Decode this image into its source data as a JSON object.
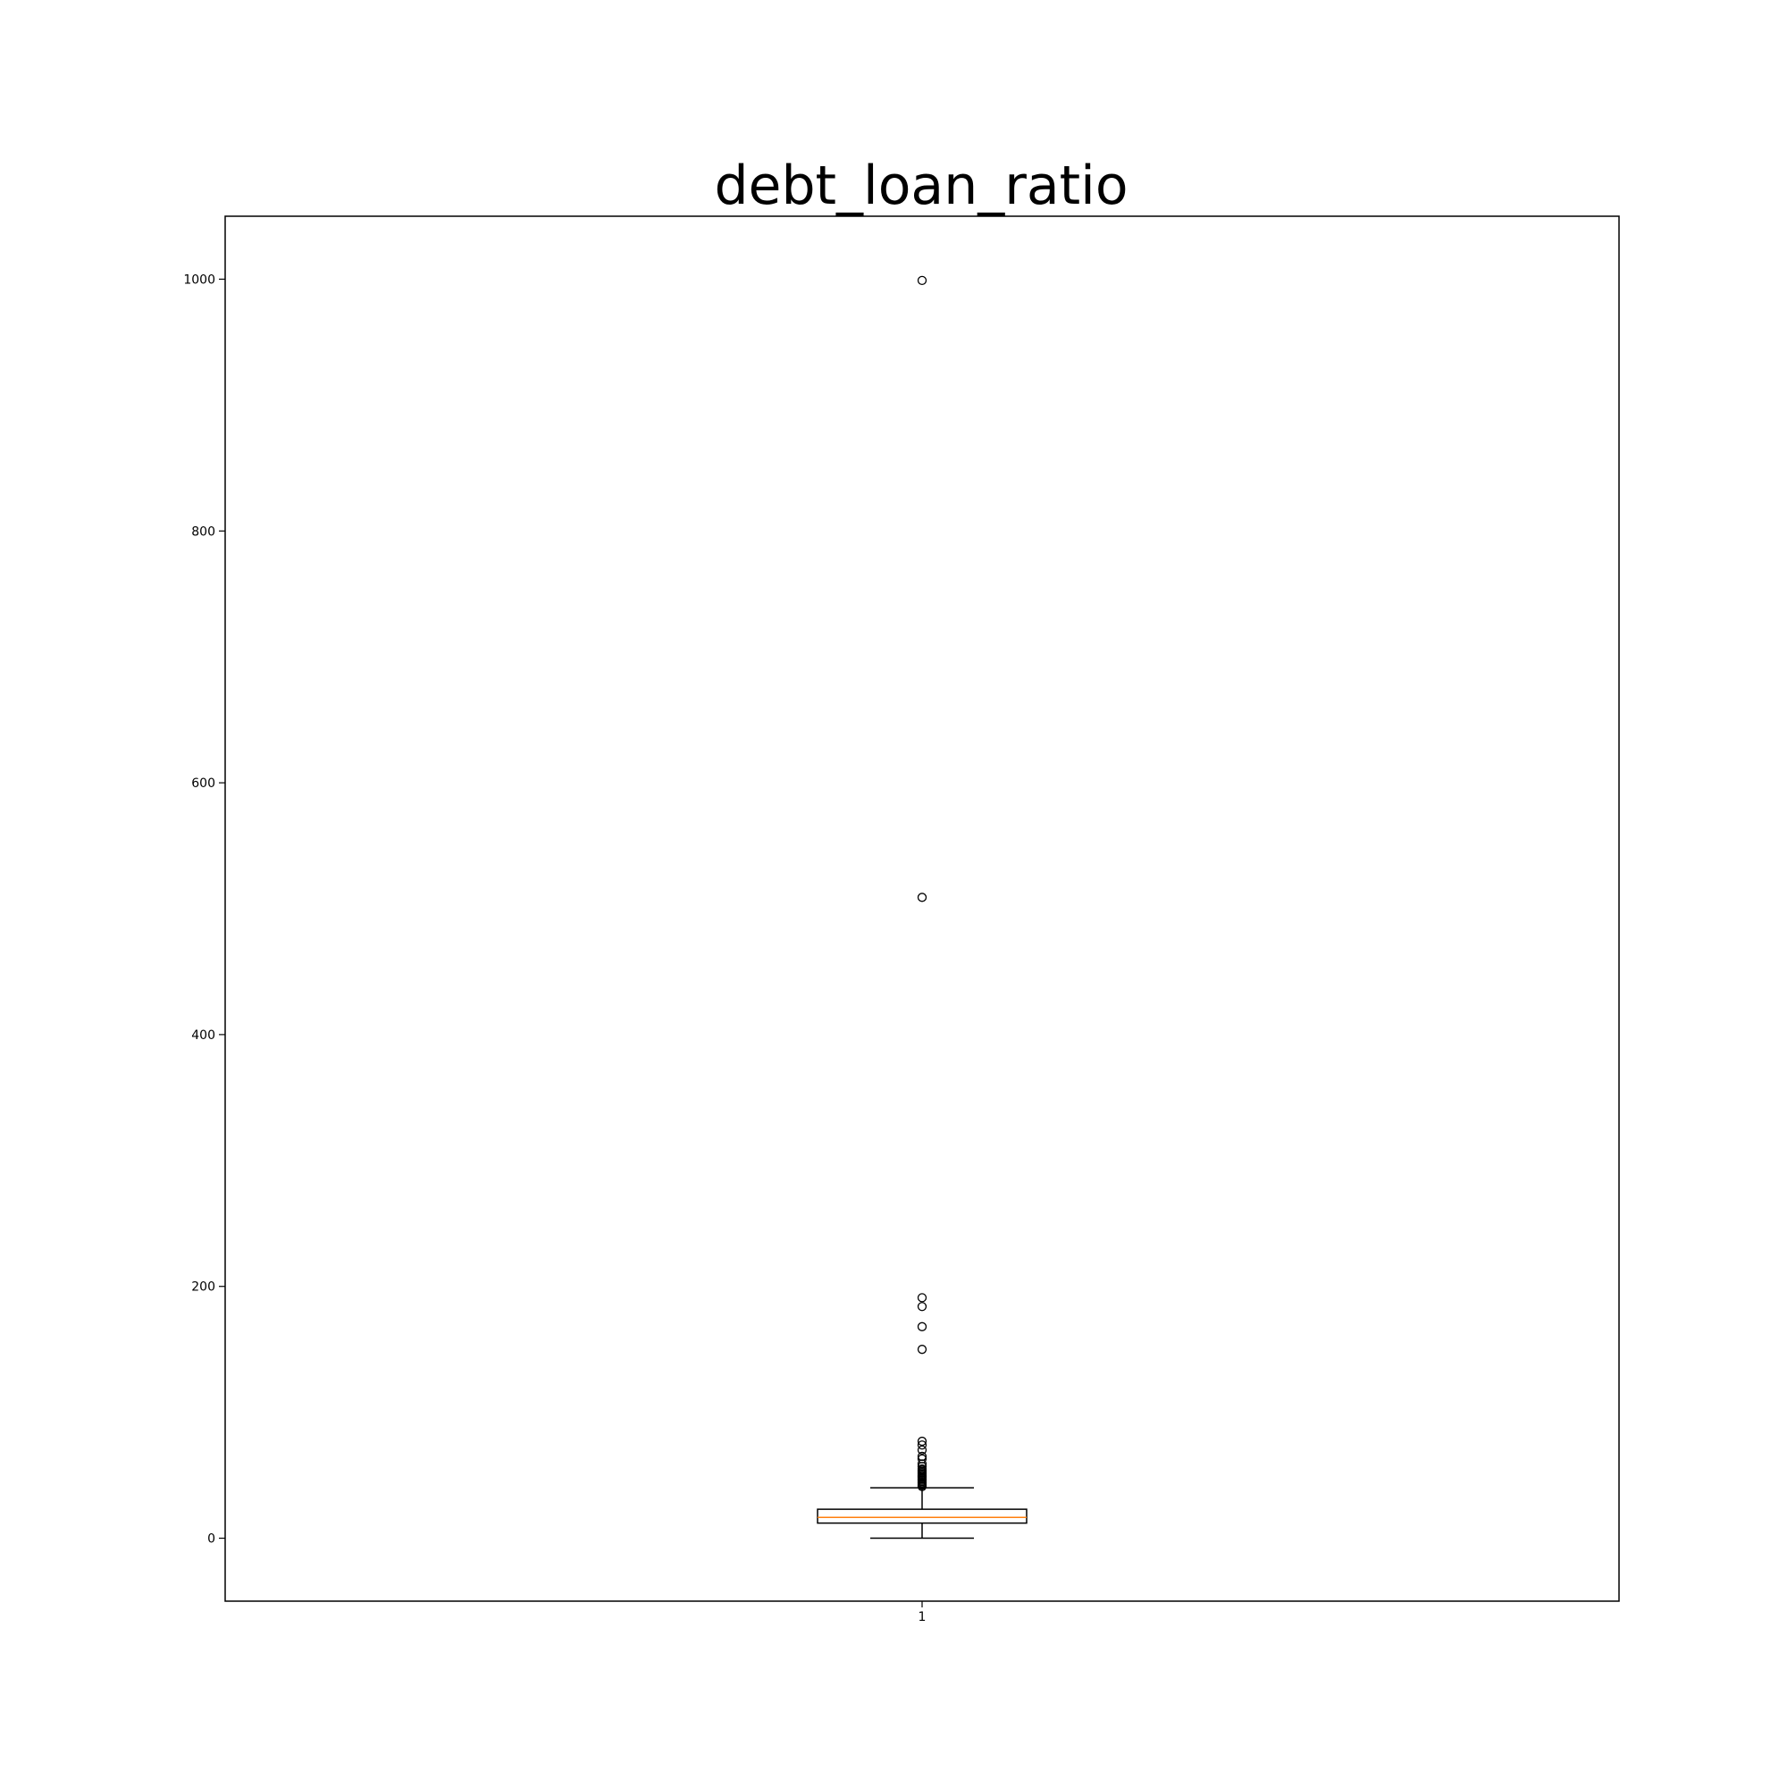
{
  "chart_data": {
    "type": "box",
    "title": "debt_loan_ratio",
    "xlabel": "",
    "ylabel": "",
    "categories": [
      "1"
    ],
    "ylim": [
      -50,
      1050
    ],
    "yticks": [
      0,
      200,
      400,
      600,
      800,
      1000
    ],
    "grid": false,
    "box": {
      "whisker_low": 0,
      "q1": 12,
      "median": 16.5,
      "q3": 23,
      "whisker_high": 40
    },
    "outliers": [
      41,
      42,
      43,
      44,
      45,
      46,
      47,
      48,
      49,
      50,
      51,
      52,
      53,
      54,
      55,
      57,
      59,
      63,
      65,
      70,
      74,
      77,
      150,
      168,
      184,
      191,
      509,
      999
    ],
    "colors": {
      "median": "#ff7f0e",
      "box": "#000000"
    }
  }
}
